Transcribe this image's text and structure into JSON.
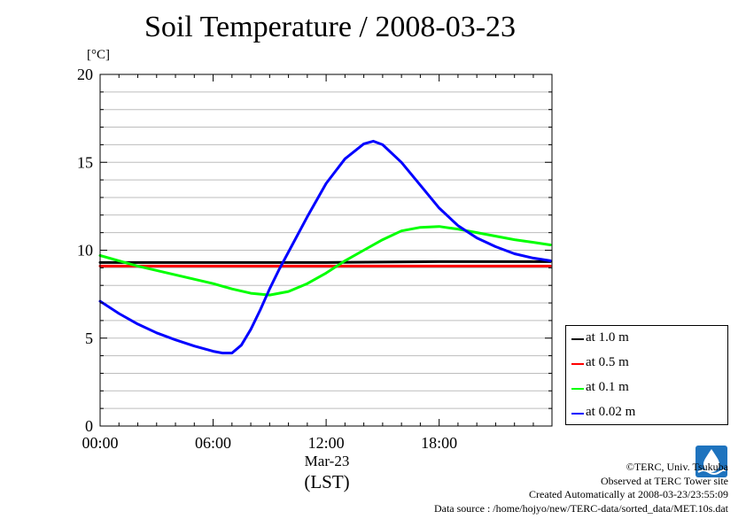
{
  "chart_data": {
    "type": "line",
    "title": "Soil Temperature / 2008-03-23",
    "ylabel": "[°C]",
    "xlabel": "(LST)",
    "x_sublabel": "Mar-23",
    "ylim": [
      0,
      20
    ],
    "xlim": [
      0,
      23.99
    ],
    "grid": true,
    "legend_position": "right",
    "y_ticks": [
      {
        "value": 0,
        "label": "0"
      },
      {
        "value": 5,
        "label": "5"
      },
      {
        "value": 10,
        "label": "10"
      },
      {
        "value": 15,
        "label": "15"
      },
      {
        "value": 20,
        "label": "20"
      }
    ],
    "x_ticks": [
      {
        "value": 0,
        "label": "00:00"
      },
      {
        "value": 6,
        "label": "06:00"
      },
      {
        "value": 12,
        "label": "12:00"
      },
      {
        "value": 18,
        "label": "18:00"
      }
    ],
    "series": [
      {
        "name": "at 1.0 m",
        "color": "#000000",
        "x": [
          0,
          6,
          12,
          18,
          23.9
        ],
        "y": [
          9.3,
          9.3,
          9.3,
          9.35,
          9.35
        ]
      },
      {
        "name": "at 0.5 m",
        "color": "#ff0000",
        "x": [
          0,
          6,
          12,
          18,
          23.9
        ],
        "y": [
          9.1,
          9.1,
          9.1,
          9.1,
          9.1
        ]
      },
      {
        "name": "at 0.1 m",
        "color": "#00ff00",
        "x": [
          0,
          2,
          4,
          6,
          7,
          8,
          9,
          10,
          11,
          12,
          13,
          14,
          15,
          16,
          17,
          18,
          19,
          20,
          21,
          22,
          23,
          23.9
        ],
        "y": [
          9.7,
          9.1,
          8.6,
          8.1,
          7.8,
          7.55,
          7.45,
          7.65,
          8.1,
          8.7,
          9.4,
          10.0,
          10.6,
          11.1,
          11.3,
          11.35,
          11.2,
          11.0,
          10.8,
          10.6,
          10.45,
          10.3
        ]
      },
      {
        "name": "at 0.02 m",
        "color": "#0000ff",
        "x": [
          0,
          1,
          2,
          3,
          4,
          5,
          6,
          6.5,
          7,
          7.5,
          8,
          8.5,
          9,
          9.5,
          10,
          11,
          12,
          13,
          14,
          14.5,
          15,
          16,
          17,
          18,
          19,
          20,
          21,
          22,
          23,
          23.9
        ],
        "y": [
          7.1,
          6.4,
          5.8,
          5.3,
          4.9,
          4.55,
          4.25,
          4.15,
          4.15,
          4.6,
          5.5,
          6.6,
          7.8,
          8.9,
          9.9,
          11.9,
          13.8,
          15.2,
          16.05,
          16.2,
          16.0,
          15.0,
          13.7,
          12.4,
          11.4,
          10.7,
          10.2,
          9.8,
          9.55,
          9.4
        ]
      }
    ]
  },
  "footer": {
    "copyright": "©TERC, Univ. Tsukuba",
    "observed": "Observed at TERC Tower site",
    "created": "Created Automatically at 2008-03-23/23:55:09",
    "source": "Data source : /home/hojyo/new/TERC-data/sorted_data/MET.10s.dat"
  },
  "logo": {
    "name": "terc-logo",
    "color": "#1e73be"
  }
}
